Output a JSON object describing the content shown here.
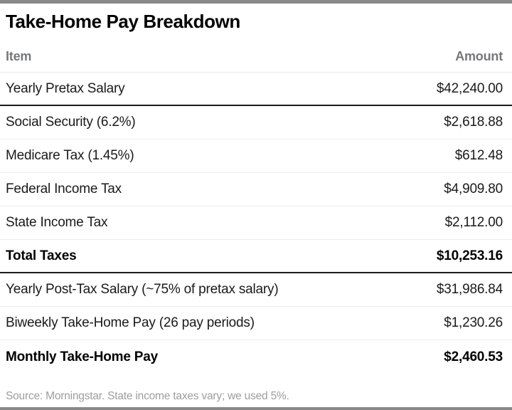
{
  "title": "Take-Home Pay Breakdown",
  "table": {
    "columns": {
      "item": "Item",
      "amount": "Amount"
    },
    "rows": [
      {
        "item": "Yearly Pretax Salary",
        "amount": "$42,240.00",
        "emphasis": false,
        "divider_after": "thick"
      },
      {
        "item": "Social Security (6.2%)",
        "amount": "$2,618.88",
        "emphasis": false,
        "divider_after": "light"
      },
      {
        "item": "Medicare Tax (1.45%)",
        "amount": "$612.48",
        "emphasis": false,
        "divider_after": "light"
      },
      {
        "item": "Federal Income Tax",
        "amount": "$4,909.80",
        "emphasis": false,
        "divider_after": "light"
      },
      {
        "item": "State Income Tax",
        "amount": "$2,112.00",
        "emphasis": false,
        "divider_after": "light"
      },
      {
        "item": "Total Taxes",
        "amount": "$10,253.16",
        "emphasis": true,
        "divider_after": "thick"
      },
      {
        "item": "Yearly Post-Tax Salary (~75% of pretax salary)",
        "amount": "$31,986.84",
        "emphasis": false,
        "divider_after": "light"
      },
      {
        "item": "Biweekly Take-Home Pay (26 pay periods)",
        "amount": "$1,230.26",
        "emphasis": false,
        "divider_after": "light"
      },
      {
        "item": "Monthly Take-Home Pay",
        "amount": "$2,460.53",
        "emphasis": true,
        "divider_after": "none"
      }
    ]
  },
  "footer": {
    "source": "Source: Morningstar. State income taxes vary; we used 5%."
  },
  "colors": {
    "bar_gray": "#898989",
    "thick_rule": "#1c1c1c",
    "light_rule": "#ededed",
    "header_gray": "#76777a",
    "source_gray": "#9d9d9d",
    "text_black": "#1a1a1a"
  },
  "chart_data": {
    "type": "table",
    "title": "Take-Home Pay Breakdown",
    "columns": [
      "Item",
      "Amount"
    ],
    "rows": [
      [
        "Yearly Pretax Salary",
        "$42,240.00"
      ],
      [
        "Social Security (6.2%)",
        "$2,618.88"
      ],
      [
        "Medicare Tax (1.45%)",
        "$612.48"
      ],
      [
        "Federal Income Tax",
        "$4,909.80"
      ],
      [
        "State Income Tax",
        "$2,112.00"
      ],
      [
        "Total Taxes",
        "$10,253.16"
      ],
      [
        "Yearly Post-Tax Salary (~75% of pretax salary)",
        "$31,986.84"
      ],
      [
        "Biweekly Take-Home Pay (26 pay periods)",
        "$1,230.26"
      ],
      [
        "Monthly Take-Home Pay",
        "$2,460.53"
      ]
    ],
    "emphasis_rows": [
      "Total Taxes",
      "Monthly Take-Home Pay"
    ],
    "values_numeric": {
      "yearly_pretax_salary": 42240.0,
      "social_security": 2618.88,
      "medicare_tax": 612.48,
      "federal_income_tax": 4909.8,
      "state_income_tax": 2112.0,
      "total_taxes": 10253.16,
      "yearly_post_tax_salary": 31986.84,
      "biweekly_take_home_pay": 1230.26,
      "monthly_take_home_pay": 2460.53
    },
    "source": "Source: Morningstar. State income taxes vary; we used 5%."
  }
}
